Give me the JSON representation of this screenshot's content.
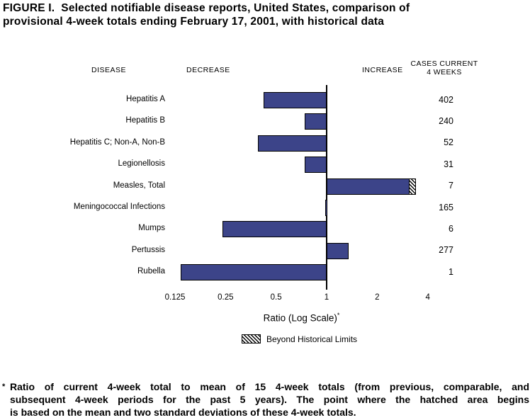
{
  "figure": {
    "title_line1": "FIGURE I.  Selected notifiable disease reports, United States, comparison of",
    "title_line2": "provisional 4-week totals ending February 17, 2001, with historical data",
    "columns": {
      "disease": "DISEASE",
      "decrease": "DECREASE",
      "increase": "INCREASE",
      "cases_line1": "CASES CURRENT",
      "cases_line2": "4 WEEKS"
    },
    "xlabel": "Ratio (Log Scale)",
    "xlabel_sup": "*",
    "legend_label": "Beyond Historical Limits",
    "footnote_marker": "*",
    "footnote_lines": [
      "Ratio of current 4-week total to mean of 15 4-week totals (from previous, comparable, and",
      "subsequent 4-week periods for the past 5 years). The point where the hatched area begins",
      "is based on the mean and two standard deviations of these 4-week totals."
    ]
  },
  "colors": {
    "bar": "#3c4489",
    "text": "#000000",
    "axis": "#000000"
  },
  "chart_data": {
    "type": "bar",
    "orientation": "horizontal",
    "scale": "log2",
    "baseline": 1,
    "xlim": [
      0.125,
      4
    ],
    "axis_ticks": [
      "0.125",
      "0.25",
      "0.5",
      "1",
      "2",
      "4"
    ],
    "xlabel": "Ratio (Log Scale)*",
    "legend": "Beyond Historical Limits",
    "legend_position": "bottom",
    "series": [
      {
        "disease": "Hepatitis A",
        "cases_current_4_weeks": 402,
        "ratio": 0.42
      },
      {
        "disease": "Hepatitis B",
        "cases_current_4_weeks": 240,
        "ratio": 0.74
      },
      {
        "disease": "Hepatitis C; Non-A, Non-B",
        "cases_current_4_weeks": 52,
        "ratio": 0.39
      },
      {
        "disease": "Legionellosis",
        "cases_current_4_weeks": 31,
        "ratio": 0.74
      },
      {
        "disease": "Measles, Total",
        "cases_current_4_weeks": 7,
        "ratio": 3.4,
        "beyond_limit_start": 3.1
      },
      {
        "disease": "Meningococcal Infections",
        "cases_current_4_weeks": 165,
        "ratio": 1.0
      },
      {
        "disease": "Mumps",
        "cases_current_4_weeks": 6,
        "ratio": 0.24
      },
      {
        "disease": "Pertussis",
        "cases_current_4_weeks": 277,
        "ratio": 1.35
      },
      {
        "disease": "Rubella",
        "cases_current_4_weeks": 1,
        "ratio": 0.135
      }
    ]
  }
}
